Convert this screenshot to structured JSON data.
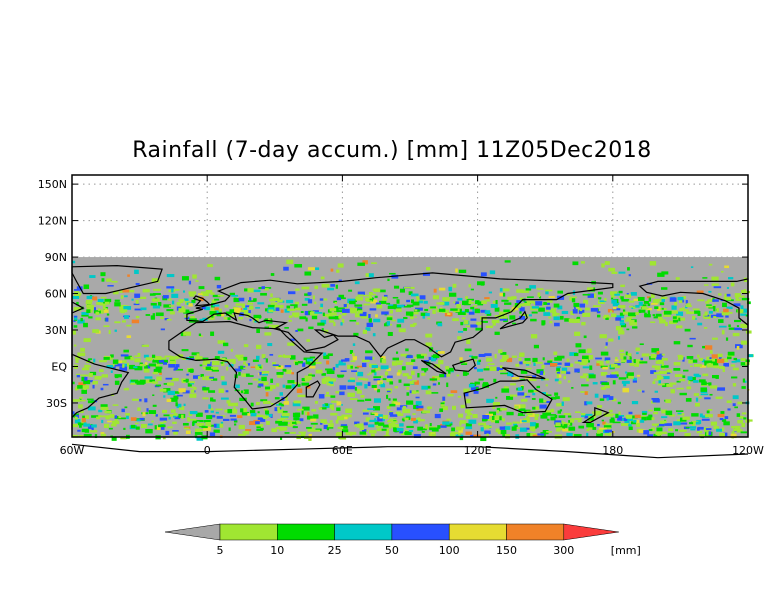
{
  "title": "Rainfall (7-day accum.) [mm] 11Z05Dec2018",
  "map": {
    "lat_labels": [
      "150N",
      "120N",
      "90N",
      "60N",
      "30N",
      "EQ",
      "30S"
    ],
    "lon_labels": [
      "60W",
      "0",
      "60E",
      "120E",
      "180",
      "120W",
      "60W",
      "0",
      "60E",
      "120E",
      "180"
    ],
    "grid": "dotted",
    "no_data_color": "#a9a9a9",
    "land_outline_color": "#000000"
  },
  "colorbar": {
    "ticks": [
      "5",
      "10",
      "25",
      "50",
      "100",
      "150",
      "300"
    ],
    "unit": "[mm]",
    "colors": [
      "#a8a8a8",
      "#a0e632",
      "#00dc00",
      "#00c8c8",
      "#2850ff",
      "#e6dc32",
      "#f08228",
      "#fa3c3c"
    ]
  }
}
